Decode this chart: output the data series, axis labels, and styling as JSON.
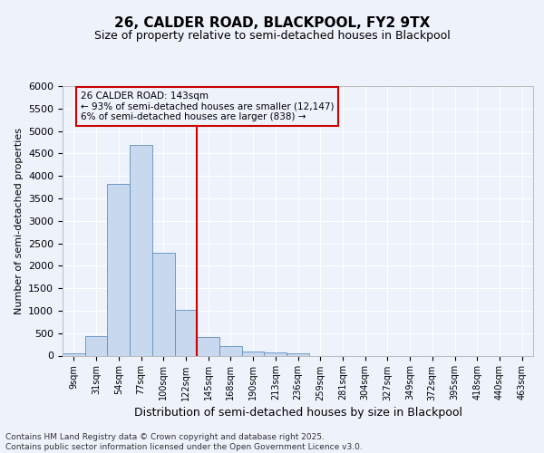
{
  "title1": "26, CALDER ROAD, BLACKPOOL, FY2 9TX",
  "title2": "Size of property relative to semi-detached houses in Blackpool",
  "xlabel": "Distribution of semi-detached houses by size in Blackpool",
  "ylabel": "Number of semi-detached properties",
  "categories": [
    "9sqm",
    "31sqm",
    "54sqm",
    "77sqm",
    "100sqm",
    "122sqm",
    "145sqm",
    "168sqm",
    "190sqm",
    "213sqm",
    "236sqm",
    "259sqm",
    "281sqm",
    "304sqm",
    "327sqm",
    "349sqm",
    "372sqm",
    "395sqm",
    "418sqm",
    "440sqm",
    "463sqm"
  ],
  "values": [
    50,
    440,
    3820,
    4680,
    2290,
    1010,
    410,
    210,
    100,
    70,
    55,
    0,
    0,
    0,
    0,
    0,
    0,
    0,
    0,
    0,
    0
  ],
  "bar_color": "#c8d8ef",
  "bar_edge_color": "#6090c0",
  "vline_color": "#cc0000",
  "annotation_text": "26 CALDER ROAD: 143sqm\n← 93% of semi-detached houses are smaller (12,147)\n6% of semi-detached houses are larger (838) →",
  "annotation_box_color": "#cc0000",
  "ylim": [
    0,
    6000
  ],
  "yticks": [
    0,
    500,
    1000,
    1500,
    2000,
    2500,
    3000,
    3500,
    4000,
    4500,
    5000,
    5500,
    6000
  ],
  "footer": "Contains HM Land Registry data © Crown copyright and database right 2025.\nContains public sector information licensed under the Open Government Licence v3.0.",
  "bg_color": "#eef2fb",
  "grid_color": "#ffffff"
}
